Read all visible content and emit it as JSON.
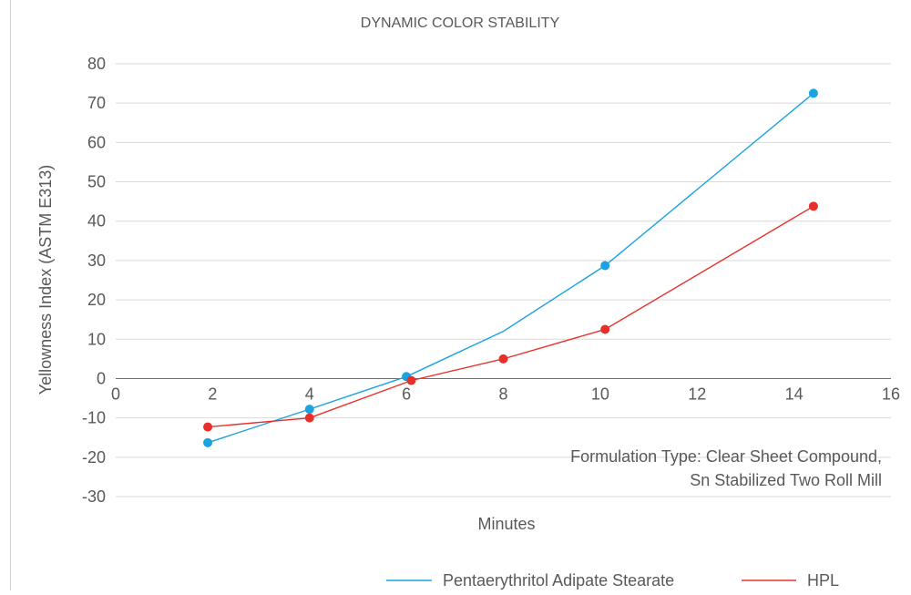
{
  "chart_data": {
    "type": "line",
    "title": "DYNAMIC COLOR STABILITY",
    "xlabel": "Minutes",
    "ylabel": "Yellowness Index (ASTM E313)",
    "xlim": [
      0,
      16
    ],
    "ylim": [
      -30,
      80
    ],
    "x_ticks": [
      "0",
      "2",
      "4",
      "6",
      "8",
      "10",
      "12",
      "14",
      "16"
    ],
    "y_ticks": [
      "80",
      "70",
      "60",
      "50",
      "40",
      "30",
      "20",
      "10",
      "0",
      "-10",
      "-20",
      "-30"
    ],
    "grid": "horizontal",
    "legend_position": "bottom",
    "annotation": [
      "Formulation Type: Clear Sheet Compound,",
      "Sn Stabilized Two Roll Mill"
    ],
    "series": [
      {
        "name": "Pentaerythritol Adipate Stearate",
        "color": "#1aa3e0",
        "points": [
          [
            1.9,
            -16.3
          ],
          [
            4.0,
            -7.8
          ],
          [
            6.0,
            0.5
          ],
          [
            8.0,
            12.0
          ],
          [
            10.1,
            28.7
          ],
          [
            14.4,
            72.5
          ]
        ],
        "markers": [
          [
            1.9,
            -16.3
          ],
          [
            4.0,
            -7.8
          ],
          [
            6.0,
            0.5
          ],
          [
            10.1,
            28.7
          ],
          [
            14.4,
            72.5
          ]
        ]
      },
      {
        "name": "HPL",
        "color": "#e8302a",
        "points": [
          [
            1.9,
            -12.3
          ],
          [
            4.0,
            -10.0
          ],
          [
            6.1,
            -0.5
          ],
          [
            8.0,
            5.0
          ],
          [
            10.1,
            12.5
          ],
          [
            14.4,
            43.8
          ]
        ],
        "markers": [
          [
            1.9,
            -12.3
          ],
          [
            4.0,
            -10.0
          ],
          [
            6.1,
            -0.5
          ],
          [
            8.0,
            5.0
          ],
          [
            10.1,
            12.5
          ],
          [
            14.4,
            43.8
          ]
        ]
      }
    ]
  }
}
